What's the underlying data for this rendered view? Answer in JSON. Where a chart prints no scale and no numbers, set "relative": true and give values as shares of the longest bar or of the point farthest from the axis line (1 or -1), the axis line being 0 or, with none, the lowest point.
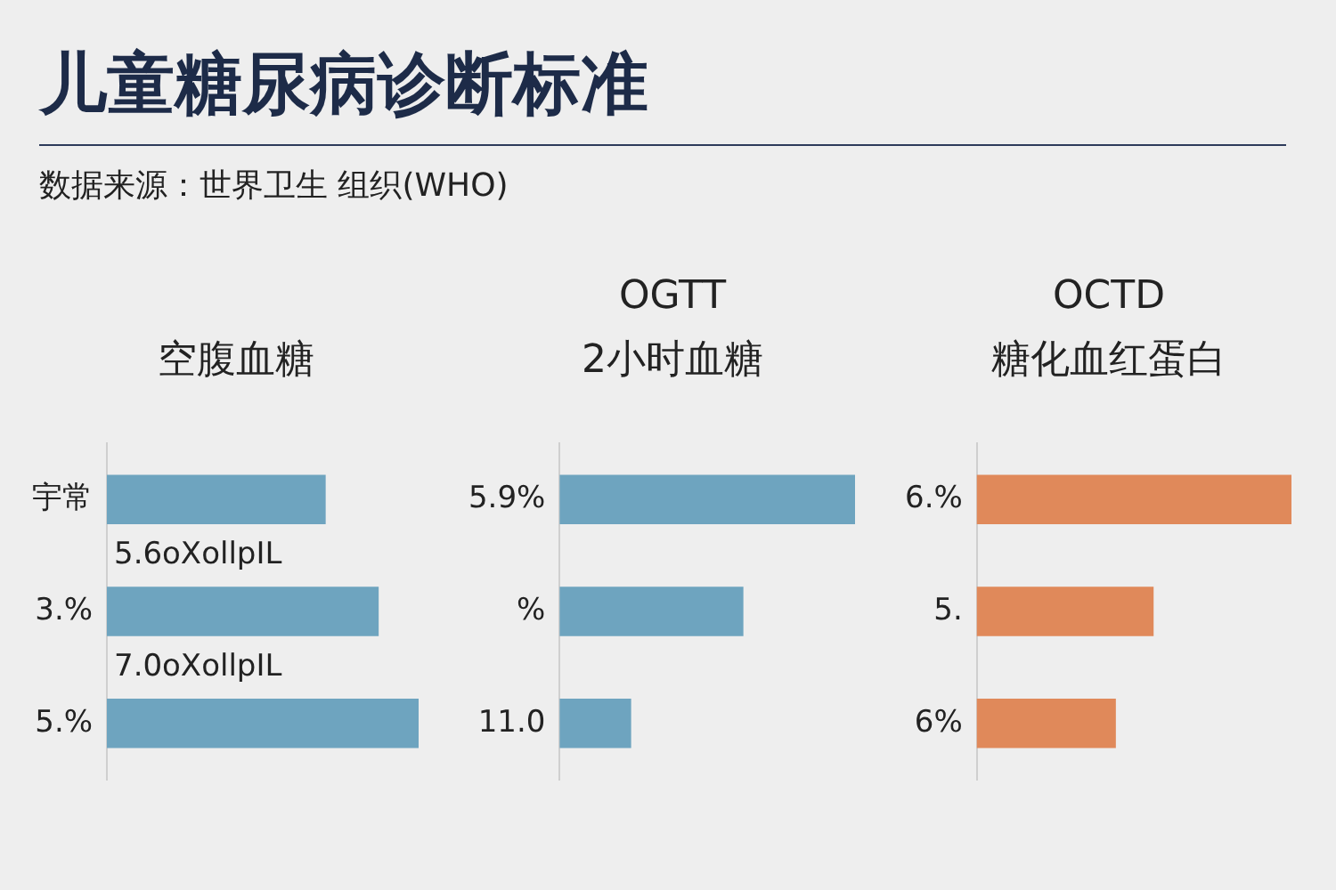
{
  "chart_data": [
    {
      "type": "bar",
      "orientation": "horizontal",
      "relative": true,
      "title": "空腹血糖",
      "categories": [
        "宇常",
        "3.%",
        "5.%"
      ],
      "values": [
        0.7,
        0.87,
        1
      ],
      "color": "#6ea4bf",
      "grid": false,
      "legend": false,
      "annotations": [
        "儿童糖尿病诊断标准",
        "数据来源：世界卫生 组织(WHO)",
        "5.6oXollpIL",
        "7.0oXollpIL"
      ]
    },
    {
      "type": "bar",
      "orientation": "horizontal",
      "relative": true,
      "title": "OGTT",
      "subtitle": "2小时血糖",
      "categories": [
        "5.9%",
        "%",
        "11.0"
      ],
      "values": [
        1,
        0.62,
        0.24
      ],
      "color": "#6ea4bf",
      "grid": false,
      "legend": false
    },
    {
      "type": "bar",
      "orientation": "horizontal",
      "relative": true,
      "title": "OCTD",
      "subtitle": "糖化血红蛋白",
      "categories": [
        "6.%",
        "5.",
        "6%"
      ],
      "values": [
        1,
        0.56,
        0.44
      ],
      "color": "#e0895a",
      "grid": false,
      "legend": false
    }
  ]
}
